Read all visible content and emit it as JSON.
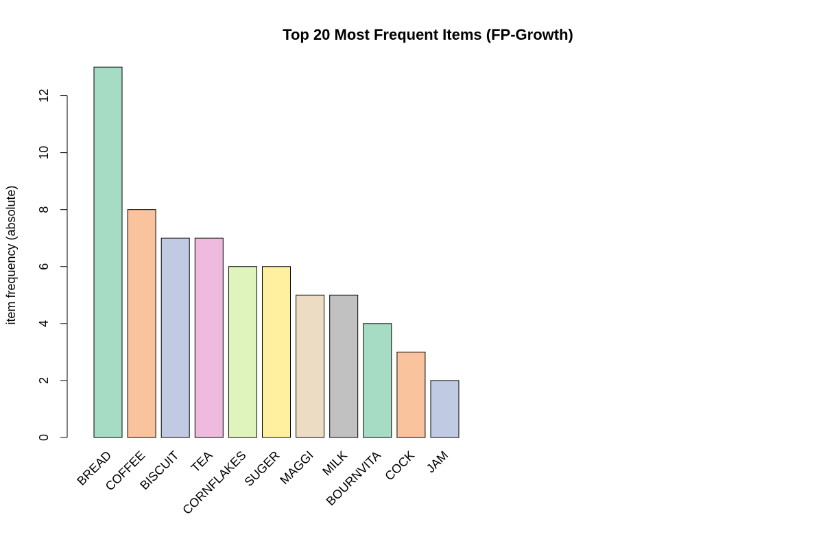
{
  "chart_data": {
    "type": "bar",
    "title": "Top 20 Most Frequent Items (FP-Growth)",
    "xlabel": "",
    "ylabel": "item frequency (absolute)",
    "categories": [
      "BREAD",
      "COFFEE",
      "BISCUIT",
      "TEA",
      "CORNFLAKES",
      "SUGER",
      "MAGGI",
      "MILK",
      "BOURNVITA",
      "COCK",
      "JAM"
    ],
    "values": [
      13,
      8,
      7,
      7,
      6,
      6,
      5,
      5,
      4,
      3,
      2
    ],
    "colors": [
      "#a6dbc4",
      "#f9c39e",
      "#c0cae2",
      "#eebadd",
      "#dff4bd",
      "#fff0a0",
      "#eddcc4",
      "#c1c1c1",
      "#a6dbc4",
      "#f9c39e",
      "#c0cae2"
    ],
    "yticks": [
      "0",
      "2",
      "4",
      "6",
      "8",
      "10",
      "12"
    ],
    "ylim": [
      0,
      13
    ],
    "grid": false,
    "legend": "none"
  }
}
